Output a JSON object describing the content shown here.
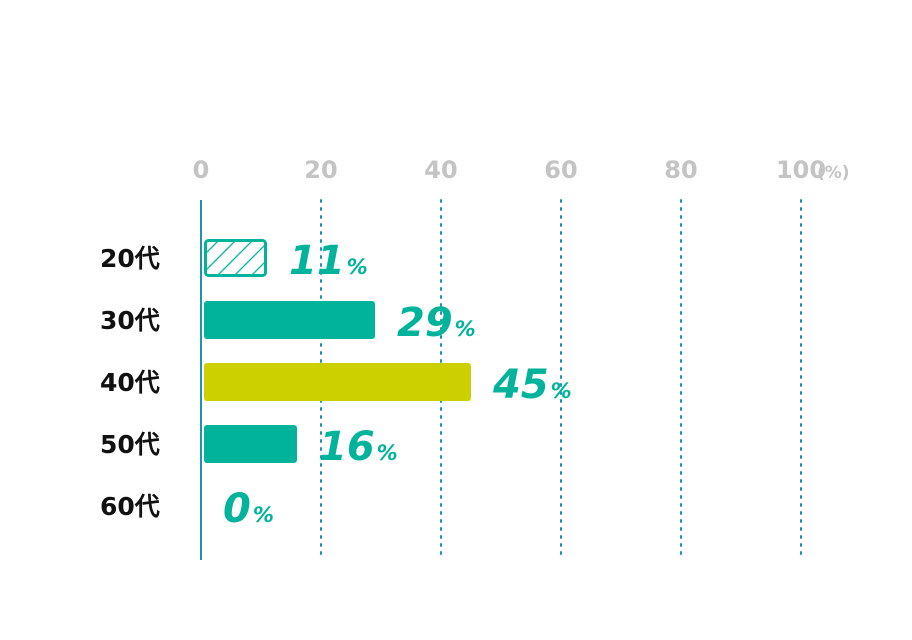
{
  "chart_data": {
    "type": "bar",
    "orientation": "horizontal",
    "categories": [
      "20代",
      "30代",
      "40代",
      "50代",
      "60代"
    ],
    "values": [
      11,
      29,
      45,
      16,
      0
    ],
    "value_unit": "%",
    "xlim": [
      0,
      100
    ],
    "xticks": [
      "0",
      "20",
      "40",
      "60",
      "80",
      "100"
    ],
    "axis_unit_label": "(%)",
    "grid": "vertical-dotted",
    "colors": {
      "teal": "#00b39a",
      "highlight": "#cdd000",
      "grid": "#1e94b4",
      "axis": "#1e94b4",
      "tick": "#c4c4c4",
      "category": "#111111"
    },
    "bar_styles": [
      "hatched",
      "solid",
      "highlight",
      "solid",
      "solid"
    ]
  }
}
